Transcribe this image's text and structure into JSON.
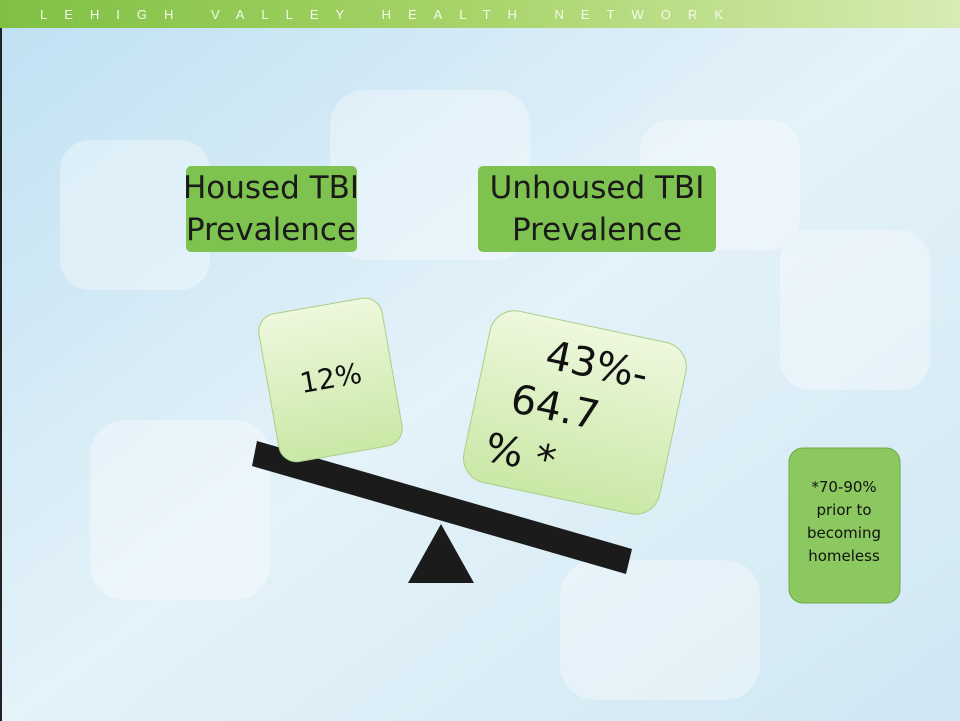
{
  "header": {
    "title": "LEHIGH VALLEY HEALTH NETWORK"
  },
  "labels": [
    {
      "lines": [
        "Housed TBI",
        "Prevalence"
      ]
    },
    {
      "lines": [
        "Unhoused TBI",
        "Prevalence"
      ]
    }
  ],
  "boxes": {
    "housed": {
      "lines": [
        "12%"
      ]
    },
    "unhoused": {
      "lines": [
        "43%-",
        "64.7",
        "% *"
      ]
    }
  },
  "note": {
    "lines": [
      "*70-90%",
      "prior to",
      "becoming",
      "homeless"
    ]
  }
}
